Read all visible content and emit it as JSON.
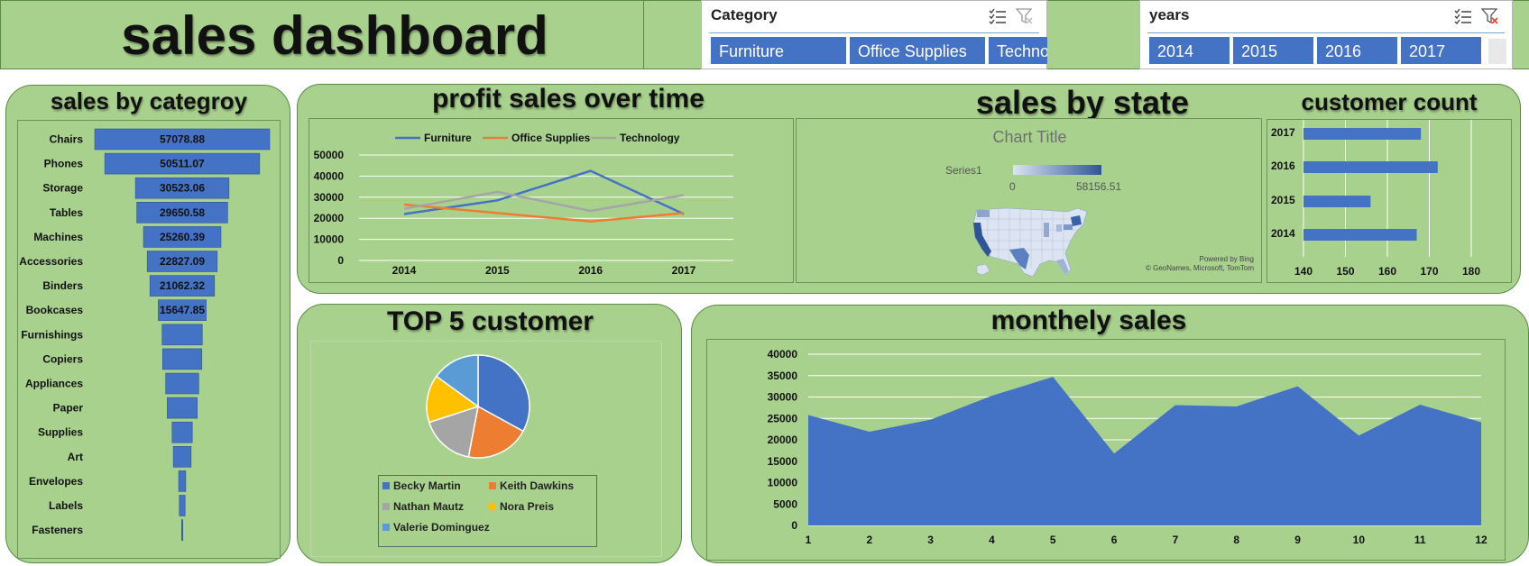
{
  "header": {
    "title": "sales dashboard"
  },
  "slicers": {
    "category": {
      "title": "Category",
      "items": [
        "Furniture",
        "Office Supplies",
        "Technology"
      ]
    },
    "years": {
      "title": "years",
      "items": [
        "2014",
        "2015",
        "2016",
        "2017"
      ]
    }
  },
  "panels": {
    "category_title": "sales by categroy",
    "profit_title": "profit sales over time",
    "state_title": "sales by state",
    "customer_title": "customer count",
    "top5_title": "TOP 5 customer",
    "monthly_title": "monthely sales"
  },
  "map": {
    "chart_title": "Chart Title",
    "legend_series": "Series1",
    "legend_min": "0",
    "legend_max": "58156.51",
    "credit_line1": "Powered by Bing",
    "credit_line2": "© GeoNames, Microsoft, TomTom",
    "colors": {
      "low": "#dce4f2",
      "high": "#2f5597"
    }
  },
  "colors": {
    "blue": "#4472c4",
    "orange": "#ed7d31",
    "gray": "#a5a5a5",
    "yellow": "#ffc000",
    "lightblue": "#5b9bd5",
    "panel": "#a9d18e"
  },
  "chart_data": [
    {
      "id": "sales_by_category",
      "type": "bar",
      "orientation": "horizontal-funnel",
      "categories": [
        "Chairs",
        "Phones",
        "Storage",
        "Tables",
        "Machines",
        "Accessories",
        "Binders",
        "Bookcases",
        "Furnishings",
        "Copiers",
        "Appliances",
        "Paper",
        "Supplies",
        "Art",
        "Envelopes",
        "Labels",
        "Fasteners"
      ],
      "values": [
        57078.88,
        50511.07,
        30523.06,
        29650.58,
        25260.39,
        22827.09,
        21062.32,
        15647.85,
        13100,
        12800,
        10800,
        9800,
        6600,
        5800,
        2300,
        1900,
        400
      ],
      "data_labels": [
        "57078.88",
        "50511.07",
        "30523.06",
        "29650.58",
        "25260.39",
        "22827.09",
        "21062.32",
        "15647.85",
        "",
        "",
        "",
        "",
        "",
        "",
        "",
        "",
        ""
      ]
    },
    {
      "id": "profit_sales_over_time",
      "type": "line",
      "categories": [
        "2014",
        "2015",
        "2016",
        "2017"
      ],
      "series": [
        {
          "name": "Furniture",
          "values": [
            22000,
            28500,
            42500,
            22000
          ]
        },
        {
          "name": "Office Supplies",
          "values": [
            26500,
            22500,
            18500,
            22500
          ]
        },
        {
          "name": "Technology",
          "values": [
            24500,
            32500,
            23500,
            31000
          ]
        }
      ],
      "ylim": [
        0,
        50000
      ],
      "yticks": [
        "0",
        "10000",
        "20000",
        "30000",
        "40000",
        "50000"
      ],
      "grid": true,
      "legend": "top"
    },
    {
      "id": "customer_count",
      "type": "bar",
      "orientation": "horizontal",
      "categories": [
        "2017",
        "2016",
        "2015",
        "2014"
      ],
      "values": [
        168,
        172,
        156,
        167
      ],
      "xlim": [
        140,
        180
      ],
      "xticks": [
        "140",
        "150",
        "160",
        "170",
        "180"
      ],
      "grid": true
    },
    {
      "id": "top5_customer",
      "type": "pie",
      "labels": [
        "Becky Martin",
        "Keith Dawkins",
        "Nathan Mautz",
        "Nora Preis",
        "Valerie Dominguez"
      ],
      "values": [
        33,
        20,
        17,
        15,
        15
      ],
      "legend": "bottom"
    },
    {
      "id": "monthly_sales",
      "type": "area",
      "categories": [
        "1",
        "2",
        "3",
        "4",
        "5",
        "6",
        "7",
        "8",
        "9",
        "10",
        "11",
        "12"
      ],
      "values": [
        25800,
        21900,
        24700,
        30300,
        34700,
        16800,
        28100,
        27800,
        32500,
        21000,
        28200,
        24100
      ],
      "ylim": [
        0,
        40000
      ],
      "yticks": [
        "0",
        "5000",
        "10000",
        "15000",
        "20000",
        "25000",
        "30000",
        "35000",
        "40000"
      ],
      "grid": true
    }
  ]
}
